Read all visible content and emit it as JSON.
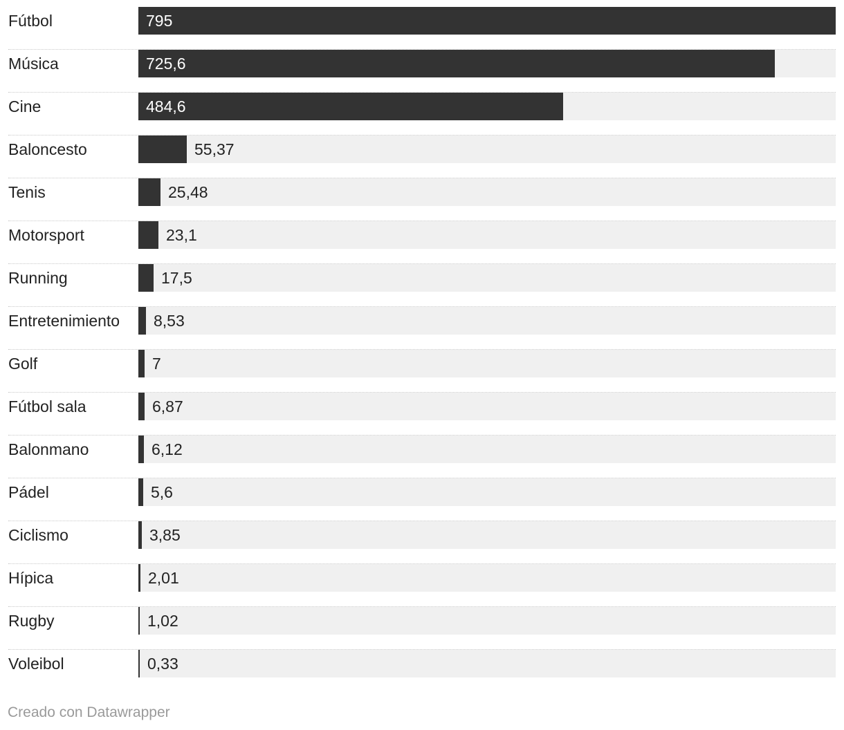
{
  "chart_data": {
    "type": "bar",
    "orientation": "horizontal",
    "categories": [
      "Fútbol",
      "Música",
      "Cine",
      "Baloncesto",
      "Tenis",
      "Motorsport",
      "Running",
      "Entretenimiento",
      "Golf",
      "Fútbol sala",
      "Balonmano",
      "Pádel",
      "Ciclismo",
      "Hípica",
      "Rugby",
      "Voleibol"
    ],
    "values": [
      795,
      725.6,
      484.6,
      55.37,
      25.48,
      23.1,
      17.5,
      8.53,
      7,
      6.87,
      6.12,
      5.6,
      3.85,
      2.01,
      1.02,
      0.33
    ],
    "value_labels": [
      "795",
      "725,6",
      "484,6",
      "55,37",
      "25,48",
      "23,1",
      "17,5",
      "8,53",
      "7",
      "6,87",
      "6,12",
      "5,6",
      "3,85",
      "2,01",
      "1,02",
      "0,33"
    ],
    "xlim": [
      0,
      795
    ],
    "grid": false,
    "bar_color": "#333333",
    "track_color": "#f0f0f0"
  },
  "footer": {
    "credit": "Creado con Datawrapper"
  }
}
